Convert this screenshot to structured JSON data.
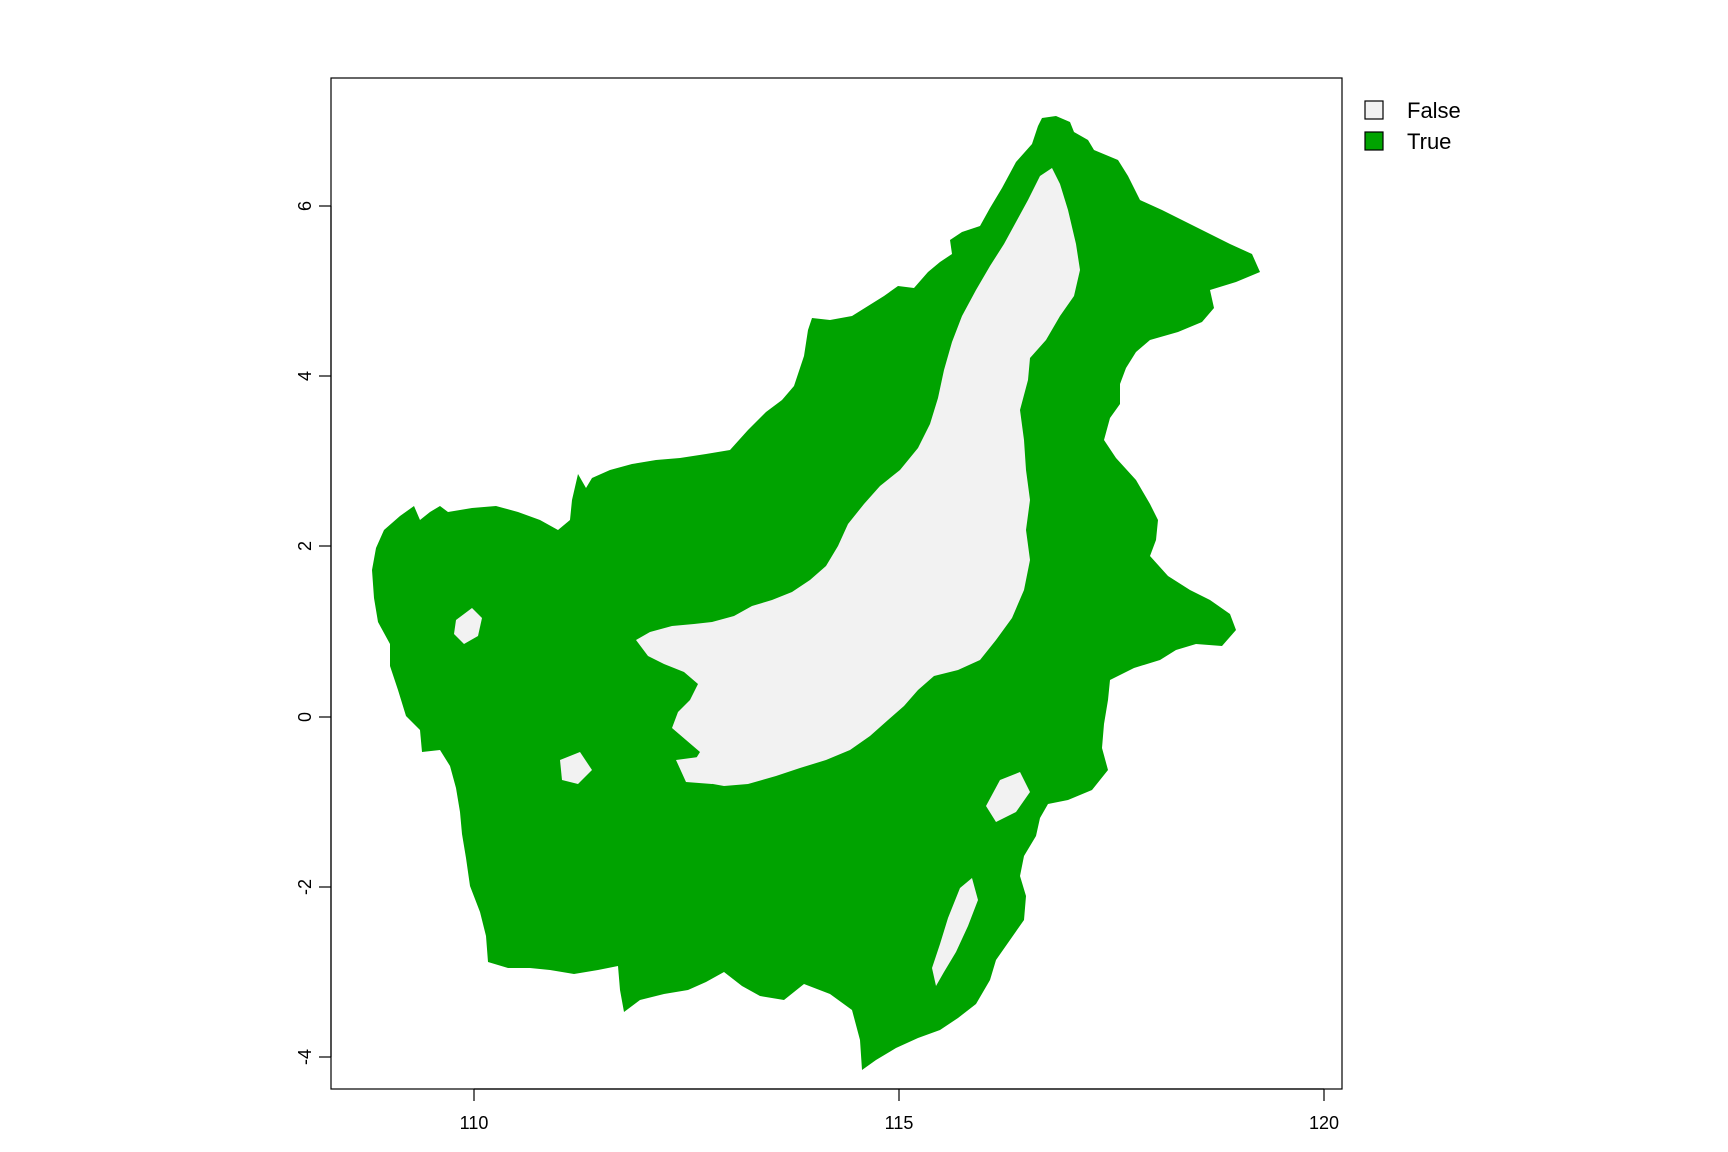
{
  "map": {
    "x_ticks": [
      "110",
      "115",
      "120"
    ],
    "y_ticks": [
      "-4",
      "-2",
      "0",
      "2",
      "4",
      "6"
    ],
    "legend": [
      {
        "label": "False",
        "color": "#f2f2f2"
      },
      {
        "label": "True",
        "color": "#00a300"
      }
    ],
    "colors": {
      "true_fill": "#00a300",
      "false_fill": "#f2f2f2",
      "frame": "#000000"
    }
  }
}
